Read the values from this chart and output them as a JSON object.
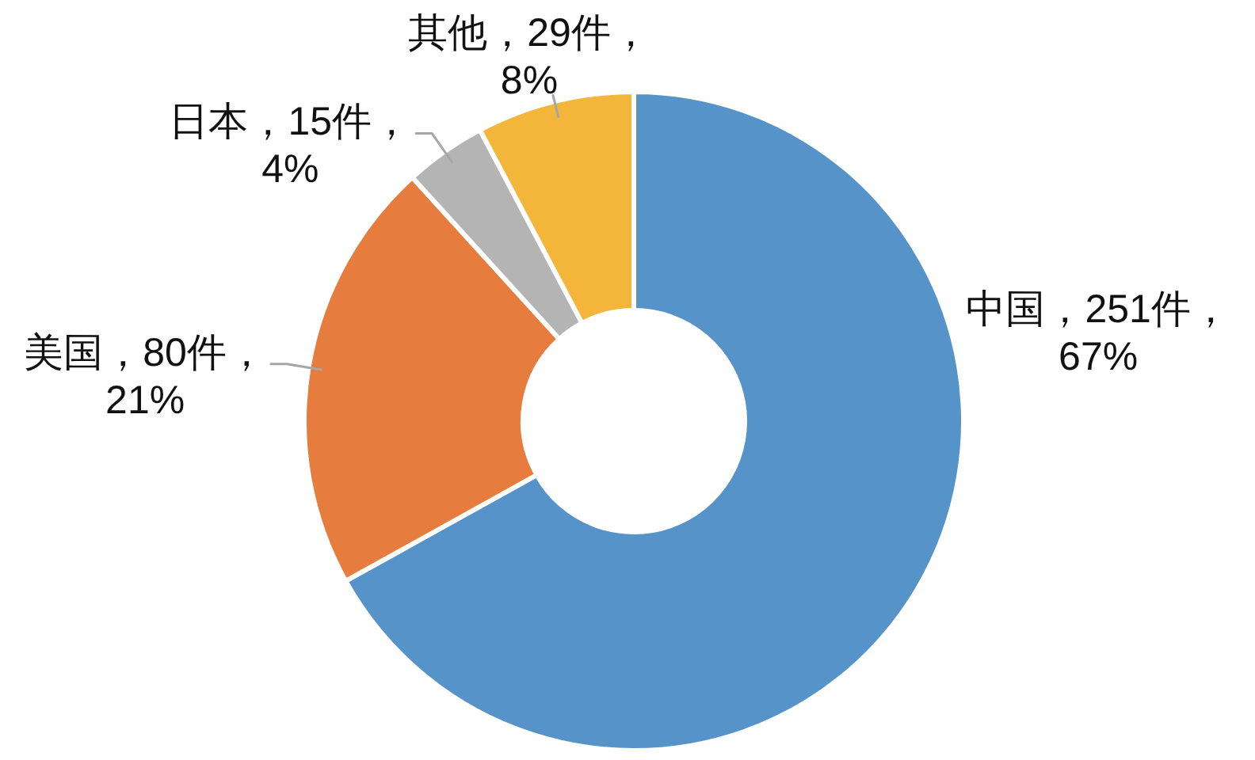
{
  "chart_data": {
    "type": "donut",
    "categories": [
      "中国",
      "美国",
      "日本",
      "其他"
    ],
    "values": [
      251,
      80,
      15,
      29
    ],
    "value_labels": [
      "251件，67%",
      "80件，21%",
      "15件，4%",
      "29件，8%"
    ],
    "colors": [
      "#5593c8",
      "#e67c3d",
      "#b4b4b4",
      "#f4b53b"
    ]
  }
}
